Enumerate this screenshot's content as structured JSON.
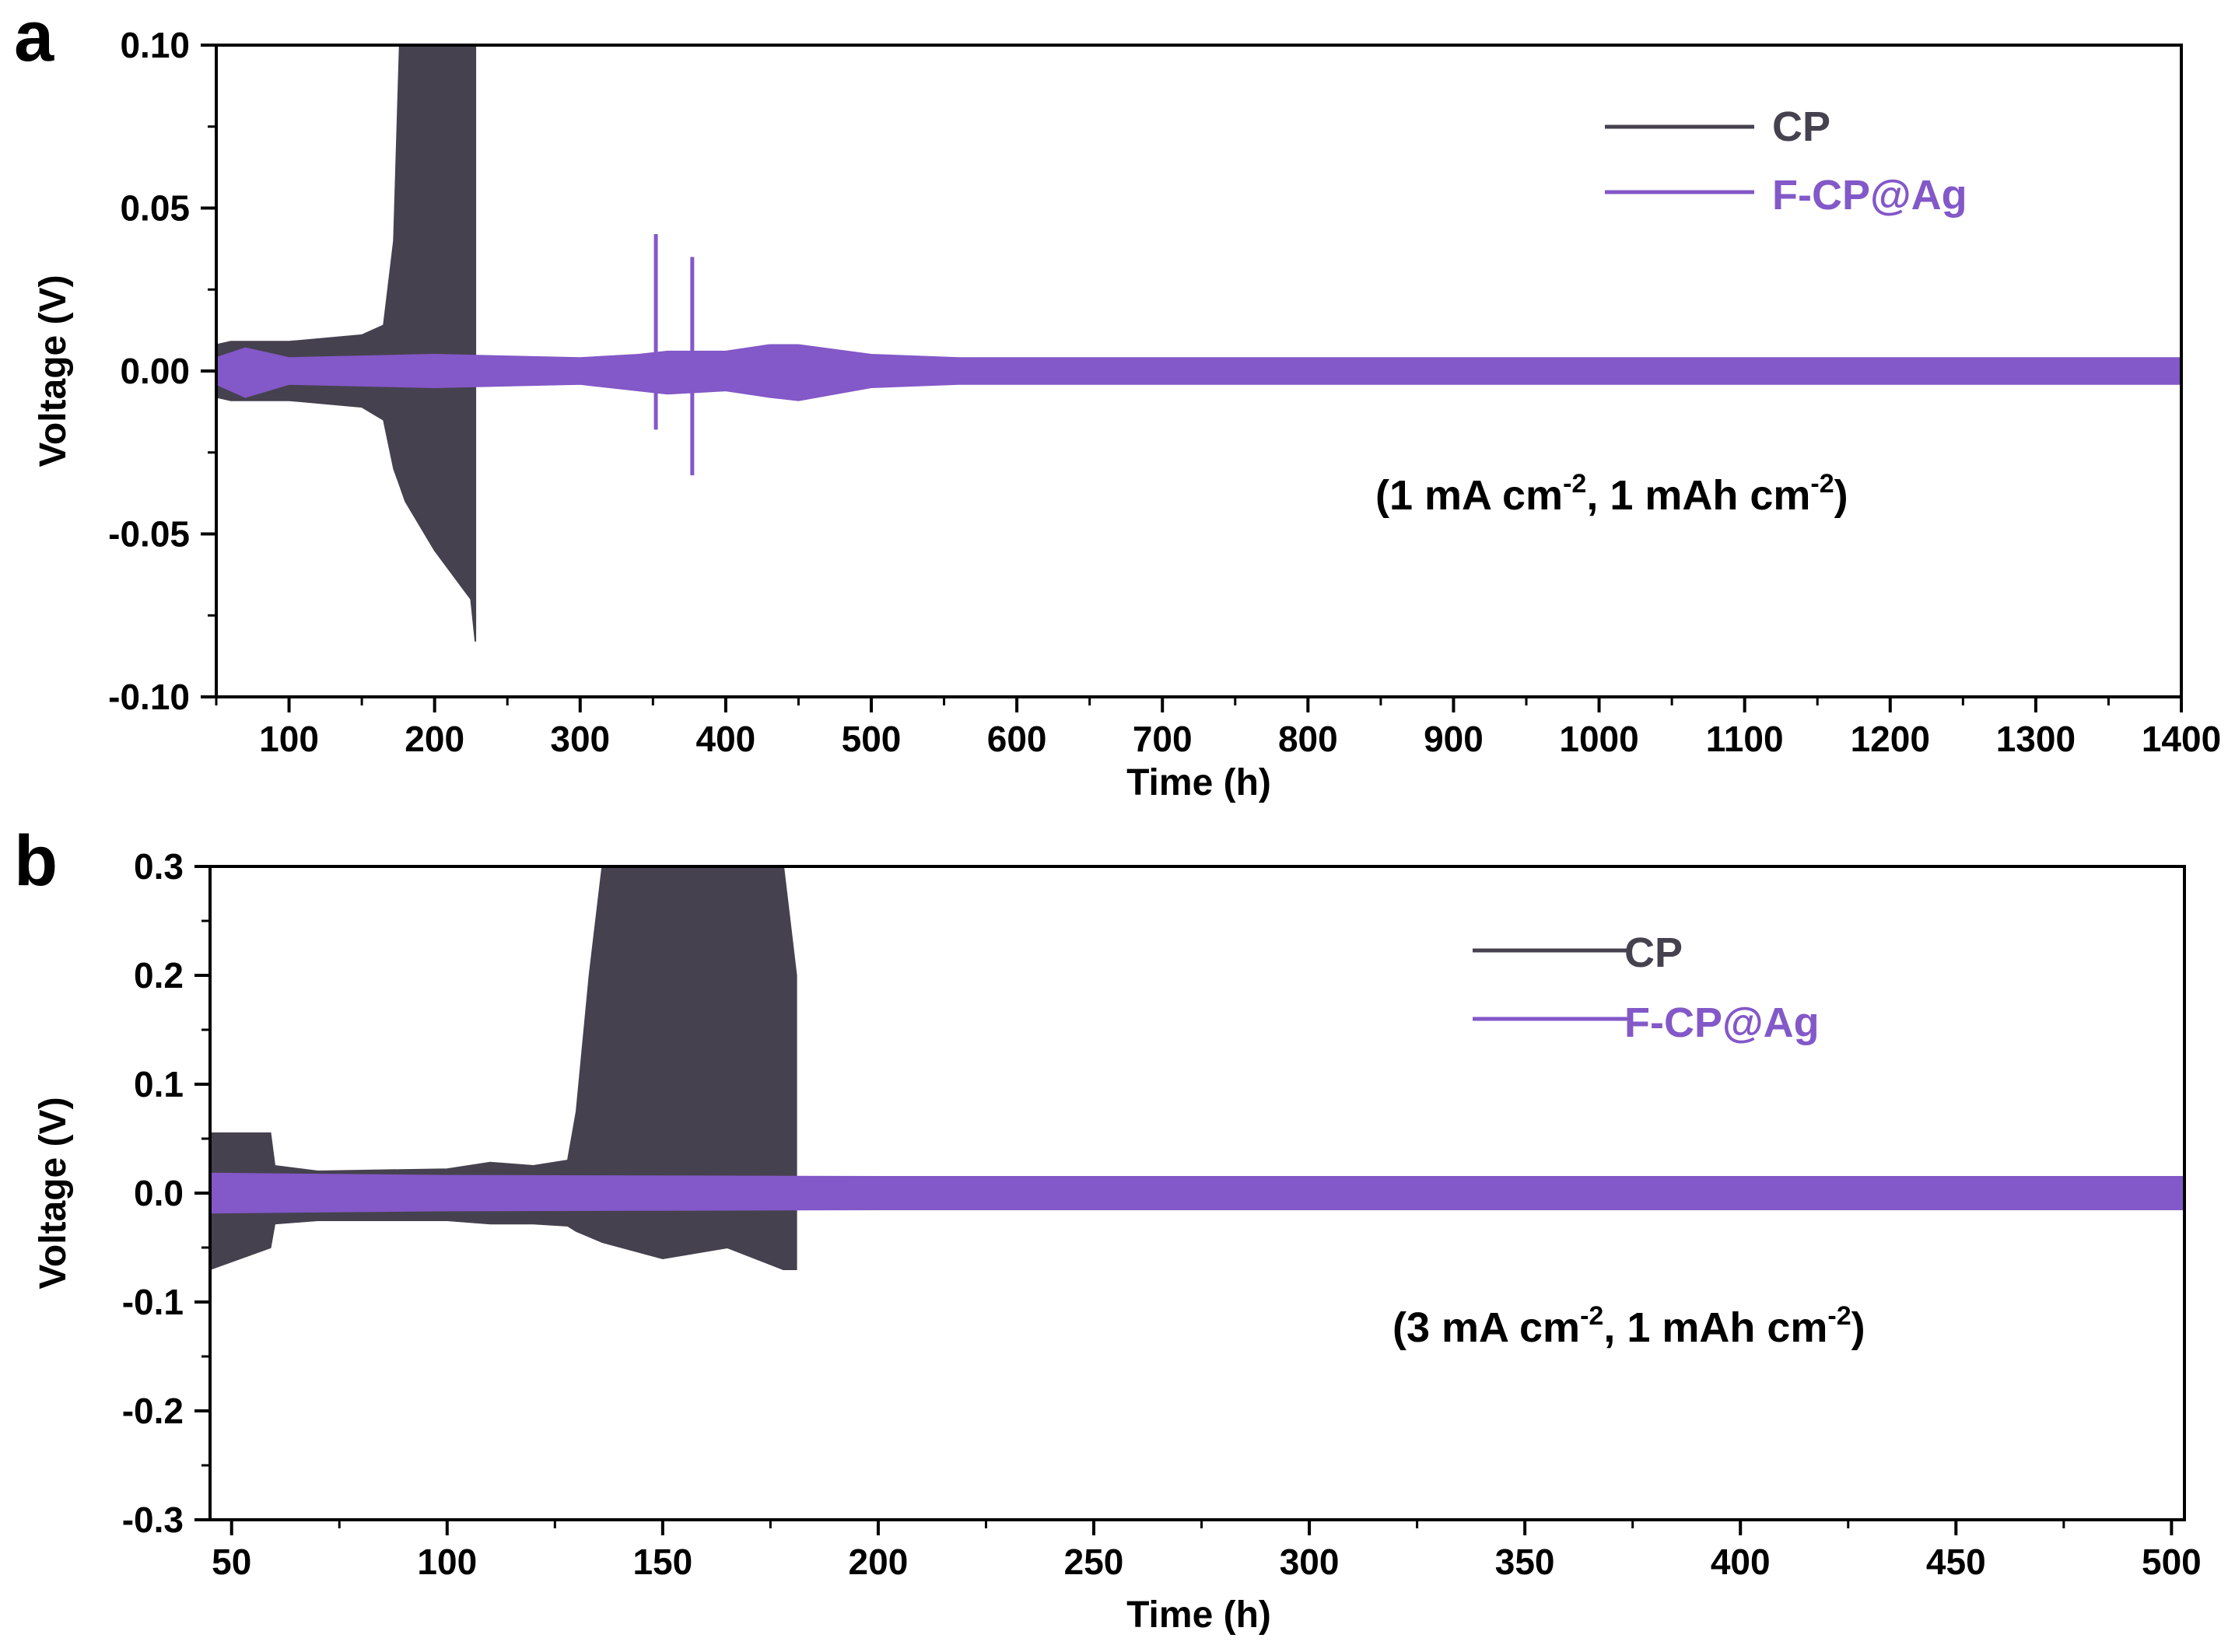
{
  "figure": {
    "panel_labels": [
      "a",
      "b"
    ]
  },
  "chart_data": [
    {
      "panel": "a",
      "type": "line",
      "xlabel": "Time (h)",
      "ylabel": "Voltage (V)",
      "xlim": [
        50,
        1400
      ],
      "ylim": [
        -0.1,
        0.1
      ],
      "xticks": [
        100,
        200,
        300,
        400,
        500,
        600,
        700,
        800,
        900,
        1000,
        1100,
        1200,
        1300,
        1400
      ],
      "yticks": [
        -0.1,
        -0.05,
        0.0,
        0.05,
        0.1
      ],
      "ytick_labels": [
        "-0.10",
        "-0.05",
        "0.00",
        "0.05",
        "0.10"
      ],
      "annotation": {
        "prefix": "(1 mA cm",
        "sup1": "-2",
        "middle": ", 1 mAh cm",
        "sup2": "-2",
        "suffix": ")"
      },
      "legend_position": "top-right",
      "series": [
        {
          "name": "CP",
          "color": "#46414f",
          "envelope": {
            "x": [
              50,
              60,
              100,
              150,
              165,
              172,
              176,
              180,
              200,
              225,
              228
            ],
            "upper": [
              0.008,
              0.009,
              0.009,
              0.011,
              0.014,
              0.04,
              0.1,
              0.1,
              0.1,
              0.1,
              0.1
            ],
            "lower": [
              -0.008,
              -0.009,
              -0.009,
              -0.011,
              -0.015,
              -0.03,
              -0.035,
              -0.04,
              -0.055,
              -0.07,
              -0.083
            ]
          }
        },
        {
          "name": "F-CP@Ag",
          "color": "#8358c8",
          "envelope": {
            "x": [
              50,
              70,
              100,
              200,
              300,
              340,
              360,
              400,
              430,
              450,
              500,
              560,
              700,
              1000,
              1400
            ],
            "upper": [
              0.004,
              0.007,
              0.004,
              0.005,
              0.004,
              0.005,
              0.006,
              0.006,
              0.008,
              0.008,
              0.005,
              0.004,
              0.004,
              0.004,
              0.004
            ],
            "lower": [
              -0.004,
              -0.008,
              -0.004,
              -0.005,
              -0.004,
              -0.006,
              -0.007,
              -0.006,
              -0.008,
              -0.009,
              -0.005,
              -0.004,
              -0.004,
              -0.004,
              -0.004
            ]
          },
          "spikes": [
            {
              "x": 352,
              "min": -0.018,
              "max": 0.042
            },
            {
              "x": 377,
              "min": -0.032,
              "max": 0.035
            }
          ]
        }
      ]
    },
    {
      "panel": "b",
      "type": "line",
      "xlabel": "Time (h)",
      "ylabel": "Voltage (V)",
      "xlim": [
        45,
        503
      ],
      "ylim": [
        -0.3,
        0.3
      ],
      "xticks": [
        50,
        100,
        150,
        200,
        250,
        300,
        350,
        400,
        450,
        500
      ],
      "yticks": [
        -0.3,
        -0.2,
        -0.1,
        0.0,
        0.1,
        0.2,
        0.3
      ],
      "ytick_labels": [
        "-0.3",
        "-0.2",
        "-0.1",
        "0.0",
        "0.1",
        "0.2",
        "0.3"
      ],
      "annotation": {
        "prefix": "(3 mA cm",
        "sup1": "-2",
        "middle": ", 1 mAh cm",
        "sup2": "-2",
        "suffix": ")"
      },
      "legend_position": "top-right",
      "series": [
        {
          "name": "CP",
          "color": "#46414f",
          "envelope": {
            "x": [
              45,
              59,
              60,
              70,
              100,
              110,
              120,
              128,
              130,
              133,
              136,
              150,
              165,
              178,
              181
            ],
            "upper": [
              0.055,
              0.055,
              0.025,
              0.02,
              0.022,
              0.028,
              0.025,
              0.03,
              0.075,
              0.2,
              0.3,
              0.3,
              0.3,
              0.3,
              0.2
            ],
            "lower": [
              -0.07,
              -0.05,
              -0.028,
              -0.025,
              -0.025,
              -0.028,
              -0.028,
              -0.03,
              -0.035,
              -0.04,
              -0.045,
              -0.06,
              -0.05,
              -0.07,
              -0.07
            ]
          }
        },
        {
          "name": "F-CP@Ag",
          "color": "#8358c8",
          "envelope": {
            "x": [
              45,
              100,
              200,
              300,
              400,
              503
            ],
            "upper": [
              0.018,
              0.016,
              0.015,
              0.015,
              0.015,
              0.015
            ],
            "lower": [
              -0.018,
              -0.016,
              -0.015,
              -0.015,
              -0.015,
              -0.015
            ]
          }
        }
      ]
    }
  ]
}
